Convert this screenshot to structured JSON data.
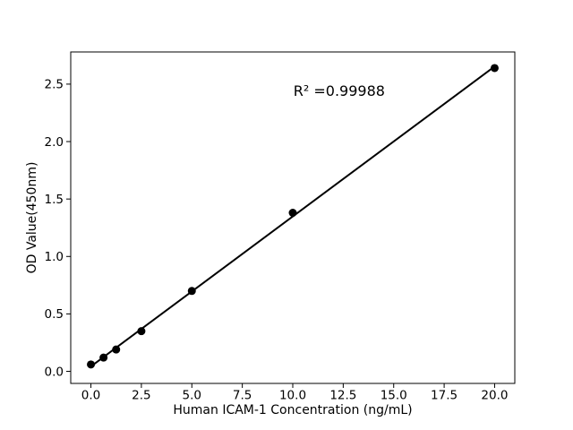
{
  "figure": {
    "background": "#ffffff",
    "foreground": "#000000"
  },
  "chart_data": {
    "type": "scatter",
    "title": "",
    "xlabel": "Human ICAM-1 Concentration (ng/mL)",
    "ylabel": "OD Value(450nm)",
    "x": [
      0,
      0.625,
      1.25,
      2.5,
      5,
      10,
      20
    ],
    "y": [
      0.06,
      0.12,
      0.19,
      0.35,
      0.7,
      1.38,
      2.64
    ],
    "fit_line": true,
    "r_squared": 0.99988,
    "annotation": {
      "text": "R² =0.99988",
      "x": 12.3,
      "y": 2.44
    },
    "xlim": [
      -1,
      21
    ],
    "ylim": [
      -0.105,
      2.78
    ],
    "xticks": [
      0.0,
      2.5,
      5.0,
      7.5,
      10.0,
      12.5,
      15.0,
      17.5,
      20.0
    ],
    "xtick_labels": [
      "0.0",
      "2.5",
      "5.0",
      "7.5",
      "10.0",
      "12.5",
      "15.0",
      "17.5",
      "20.0"
    ],
    "yticks": [
      0.0,
      0.5,
      1.0,
      1.5,
      2.0,
      2.5
    ],
    "ytick_labels": [
      "0.0",
      "0.5",
      "1.0",
      "1.5",
      "2.0",
      "2.5"
    ],
    "marker_color": "#000000",
    "line_color": "#000000",
    "grid": false,
    "legend": null
  }
}
